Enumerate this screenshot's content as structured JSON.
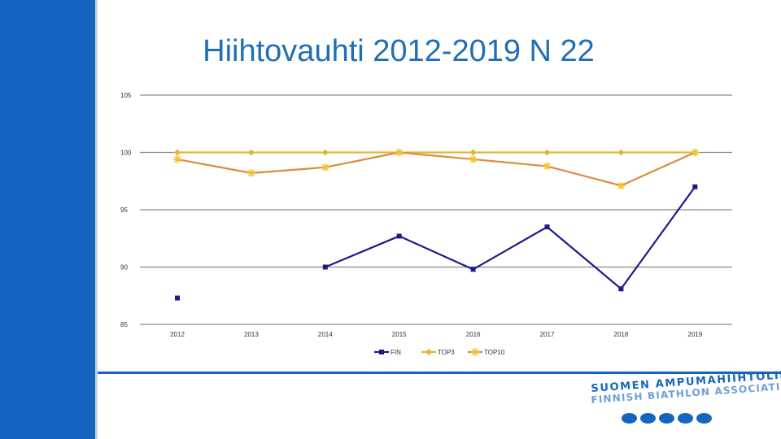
{
  "slide": {
    "title": "Hiihtovauhti 2012-2019 N 22",
    "accent_color": "#1565c0"
  },
  "logo": {
    "line1": "SUOMEN AMPUMAHIIHTOLIITTO",
    "line2": "FINNISH BIATHLON ASSOCIATION",
    "dots": 5
  },
  "chart_data": {
    "type": "line",
    "title": "",
    "xlabel": "",
    "ylabel": "",
    "categories": [
      "2012",
      "2013",
      "2014",
      "2015",
      "2016",
      "2017",
      "2018",
      "2019"
    ],
    "ylim": [
      85,
      105
    ],
    "yticks": [
      85,
      90,
      95,
      100,
      105
    ],
    "grid": true,
    "legend_position": "bottom",
    "series": [
      {
        "name": "FIN",
        "color": "#1f1a8c",
        "marker": "square",
        "values": [
          87.3,
          null,
          90.0,
          92.7,
          89.8,
          93.5,
          88.1,
          97.0
        ]
      },
      {
        "name": "TOP3",
        "color": "#e3b63a",
        "marker": "diamond",
        "values": [
          100,
          100,
          100,
          100,
          100,
          100,
          100,
          100
        ]
      },
      {
        "name": "TOP10",
        "color": "#dc8c3e",
        "marker": "star",
        "values": [
          99.4,
          98.2,
          98.7,
          100.0,
          99.4,
          98.8,
          97.1,
          100.0
        ]
      }
    ]
  }
}
